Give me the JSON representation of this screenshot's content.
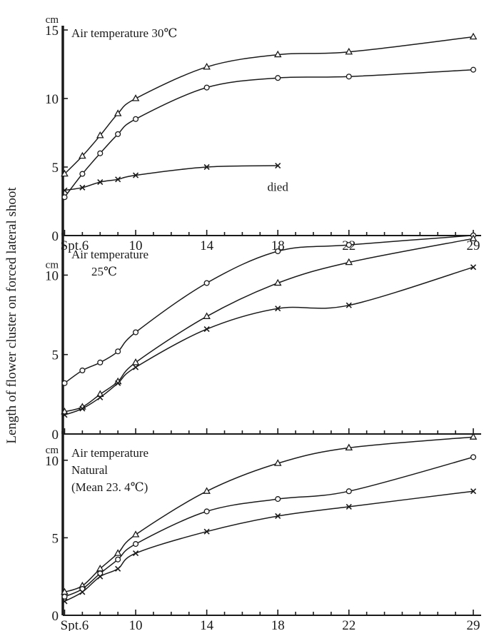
{
  "chart_data": [
    {
      "type": "line",
      "panel": "top",
      "annotation_lines": [
        "Air temperature  30℃"
      ],
      "y_unit": "cm",
      "ylim": [
        0,
        15
      ],
      "y_ticks": [
        "0",
        "5",
        "10",
        "15"
      ],
      "x_ticks": [
        "Spt.6",
        "10",
        "14",
        "18",
        "22",
        "29"
      ],
      "x_tick_values": [
        6,
        10,
        14,
        18,
        22,
        29
      ],
      "xlim": [
        5.9,
        29.2
      ],
      "note_text": "died",
      "note_x": 18,
      "note_y": 4.2,
      "series": [
        {
          "marker": "triangle",
          "x": [
            6,
            7,
            8,
            9,
            10,
            14,
            18,
            22,
            29
          ],
          "y": [
            4.5,
            5.8,
            7.3,
            8.9,
            10.0,
            12.3,
            13.2,
            13.4,
            14.5
          ]
        },
        {
          "marker": "circle",
          "x": [
            6,
            7,
            8,
            9,
            10,
            14,
            18,
            22,
            29
          ],
          "y": [
            2.8,
            4.5,
            6.0,
            7.4,
            8.5,
            10.8,
            11.5,
            11.6,
            12.1
          ]
        },
        {
          "marker": "cross",
          "x": [
            6,
            7,
            8,
            9,
            10,
            14,
            18
          ],
          "y": [
            3.3,
            3.5,
            3.9,
            4.1,
            4.4,
            5.0,
            5.1
          ]
        }
      ]
    },
    {
      "type": "line",
      "panel": "middle",
      "annotation_lines": [
        "Air temperature",
        "25℃"
      ],
      "y_unit": "cm",
      "ylim": [
        0,
        12.4
      ],
      "y_ticks": [
        "0",
        "5",
        "10"
      ],
      "x_ticks": [],
      "x_tick_values": [
        6,
        10,
        14,
        18,
        22,
        29
      ],
      "xlim": [
        5.9,
        29.2
      ],
      "series": [
        {
          "marker": "circle",
          "x": [
            6,
            7,
            8,
            9,
            10,
            14,
            18,
            22,
            29
          ],
          "y": [
            3.2,
            4.0,
            4.5,
            5.2,
            6.4,
            9.5,
            11.5,
            11.9,
            12.5
          ]
        },
        {
          "marker": "triangle",
          "x": [
            6,
            7,
            8,
            9,
            10,
            14,
            18,
            22,
            29
          ],
          "y": [
            1.4,
            1.7,
            2.5,
            3.3,
            4.5,
            7.4,
            9.5,
            10.8,
            12.3
          ]
        },
        {
          "marker": "cross",
          "x": [
            6,
            7,
            8,
            9,
            10,
            14,
            18,
            22,
            29
          ],
          "y": [
            1.2,
            1.6,
            2.3,
            3.2,
            4.2,
            6.6,
            7.9,
            8.1,
            10.5
          ]
        }
      ]
    },
    {
      "type": "line",
      "panel": "bottom",
      "annotation_lines": [
        "Air temperature",
        "Natural",
        "(Mean 23. 4℃)"
      ],
      "y_unit": "cm",
      "ylim": [
        0,
        11.6
      ],
      "y_ticks": [
        "0",
        "5",
        "10"
      ],
      "x_ticks": [
        "Spt.6",
        "10",
        "14",
        "18",
        "22",
        "29"
      ],
      "x_tick_values": [
        6,
        10,
        14,
        18,
        22,
        29
      ],
      "xlim": [
        5.9,
        29.2
      ],
      "series": [
        {
          "marker": "triangle",
          "x": [
            6,
            7,
            8,
            9,
            10,
            14,
            18,
            22,
            29
          ],
          "y": [
            1.5,
            1.9,
            3.0,
            4.0,
            5.2,
            8.0,
            9.8,
            10.8,
            11.5
          ]
        },
        {
          "marker": "circle",
          "x": [
            6,
            7,
            8,
            9,
            10,
            14,
            18,
            22,
            29
          ],
          "y": [
            1.2,
            1.7,
            2.7,
            3.6,
            4.6,
            6.7,
            7.5,
            8.0,
            10.2
          ]
        },
        {
          "marker": "cross",
          "x": [
            6,
            7,
            8,
            9,
            10,
            14,
            18,
            22,
            29
          ],
          "y": [
            0.9,
            1.5,
            2.5,
            3.0,
            4.0,
            5.4,
            6.4,
            7.0,
            8.0
          ]
        }
      ]
    }
  ],
  "ylabel": "Length of flower cluster on forced lateral shoot"
}
